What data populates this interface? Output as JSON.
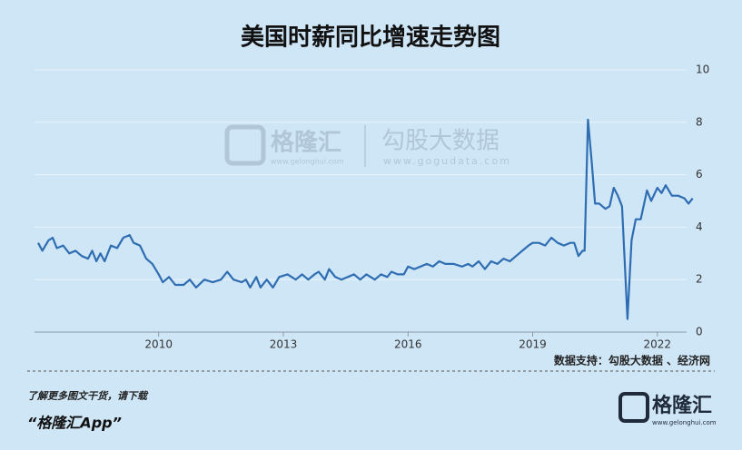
{
  "chart_data": {
    "type": "line",
    "title": "美国时薪同比增速走势图",
    "color": "#2f6db3",
    "x": [
      2007.1,
      2007.2,
      2007.35,
      2007.45,
      2007.55,
      2007.7,
      2007.85,
      2008.0,
      2008.15,
      2008.3,
      2008.4,
      2008.5,
      2008.6,
      2008.7,
      2008.85,
      2009.0,
      2009.15,
      2009.3,
      2009.4,
      2009.55,
      2009.7,
      2009.85,
      2010.0,
      2010.1,
      2010.25,
      2010.4,
      2010.6,
      2010.75,
      2010.9,
      2011.1,
      2011.3,
      2011.5,
      2011.65,
      2011.8,
      2012.0,
      2012.1,
      2012.2,
      2012.35,
      2012.45,
      2012.6,
      2012.75,
      2012.9,
      2013.1,
      2013.3,
      2013.45,
      2013.6,
      2013.75,
      2013.85,
      2014.0,
      2014.1,
      2014.25,
      2014.4,
      2014.55,
      2014.7,
      2014.85,
      2015.0,
      2015.2,
      2015.35,
      2015.5,
      2015.6,
      2015.75,
      2015.9,
      2016.0,
      2016.15,
      2016.3,
      2016.45,
      2016.6,
      2016.75,
      2016.9,
      2017.1,
      2017.3,
      2017.45,
      2017.55,
      2017.7,
      2017.85,
      2018.0,
      2018.15,
      2018.3,
      2018.45,
      2018.6,
      2018.75,
      2018.9,
      2019.0,
      2019.15,
      2019.3,
      2019.45,
      2019.6,
      2019.75,
      2019.9,
      2020.0,
      2020.1,
      2020.2,
      2020.25,
      2020.33,
      2020.42,
      2020.5,
      2020.6,
      2020.75,
      2020.85,
      2020.95,
      2021.05,
      2021.15,
      2021.28,
      2021.38,
      2021.48,
      2021.6,
      2021.75,
      2021.85,
      2022.0,
      2022.1,
      2022.2,
      2022.35,
      2022.5,
      2022.65,
      2022.75,
      2022.85
    ],
    "values": [
      3.4,
      3.1,
      3.5,
      3.6,
      3.2,
      3.3,
      3.0,
      3.1,
      2.9,
      2.8,
      3.1,
      2.7,
      3.0,
      2.7,
      3.3,
      3.2,
      3.6,
      3.7,
      3.4,
      3.3,
      2.8,
      2.6,
      2.2,
      1.9,
      2.1,
      1.8,
      1.8,
      2.0,
      1.7,
      2.0,
      1.9,
      2.0,
      2.3,
      2.0,
      1.9,
      2.0,
      1.7,
      2.1,
      1.7,
      2.0,
      1.7,
      2.1,
      2.2,
      2.0,
      2.2,
      2.0,
      2.2,
      2.3,
      2.0,
      2.4,
      2.1,
      2.0,
      2.1,
      2.2,
      2.0,
      2.2,
      2.0,
      2.2,
      2.1,
      2.3,
      2.2,
      2.2,
      2.5,
      2.4,
      2.5,
      2.6,
      2.5,
      2.7,
      2.6,
      2.6,
      2.5,
      2.6,
      2.5,
      2.7,
      2.4,
      2.7,
      2.6,
      2.8,
      2.7,
      2.9,
      3.1,
      3.3,
      3.4,
      3.4,
      3.3,
      3.6,
      3.4,
      3.3,
      3.4,
      3.4,
      2.9,
      3.1,
      3.1,
      8.1,
      6.5,
      4.9,
      4.9,
      4.7,
      4.8,
      5.5,
      5.2,
      4.8,
      0.5,
      3.5,
      4.3,
      4.3,
      5.4,
      5.0,
      5.5,
      5.3,
      5.6,
      5.2,
      5.2,
      5.1,
      4.9,
      5.1
    ],
    "xlim": [
      2007.1,
      2022.9
    ],
    "xticks": [
      2010,
      2013,
      2016,
      2019,
      2022
    ],
    "ylim": [
      0,
      10
    ],
    "yticks": [
      0,
      2,
      4,
      6,
      8,
      10
    ],
    "grid": true
  },
  "watermark": {
    "brand": "格隆汇",
    "brand_url": "www.gelonghui.com",
    "partner": "勾股大数据",
    "partner_url": "www.gogudata.com"
  },
  "source": "数据支持：勾股大数据 、经济网",
  "footer": {
    "prompt": "了解更多图文干货，请下载",
    "app": "“格隆汇App”",
    "logo": "格隆汇",
    "logo_url": "www.gelonghui.com"
  }
}
